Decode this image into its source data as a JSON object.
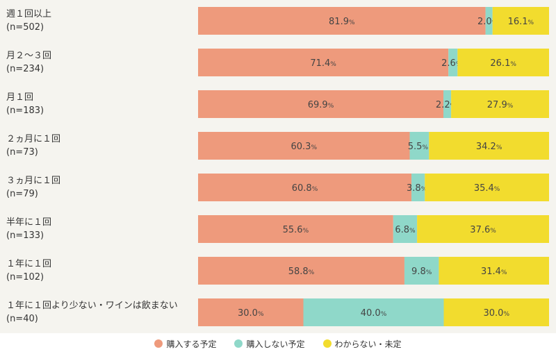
{
  "chart_data": {
    "type": "bar",
    "orientation": "horizontal",
    "stacked": true,
    "normalized_percent": true,
    "categories": [
      [
        "週１回以上",
        "(n=502)"
      ],
      [
        "月２～３回",
        "(n=234)"
      ],
      [
        "月１回",
        "(n=183)"
      ],
      [
        "２ヵ月に１回",
        "(n=73)"
      ],
      [
        "３ヵ月に１回",
        "(n=79)"
      ],
      [
        "半年に１回",
        "(n=133)"
      ],
      [
        "１年に１回",
        "(n=102)"
      ],
      [
        "１年に１回より少ない・ワインは飲まない",
        "(n=40)"
      ]
    ],
    "series": [
      {
        "name": "購入する予定",
        "color": "#ee9a7c",
        "values": [
          81.9,
          71.4,
          69.9,
          60.3,
          60.8,
          55.6,
          58.8,
          30.0
        ]
      },
      {
        "name": "購入しない予定",
        "color": "#8fd8c9",
        "values": [
          2.0,
          2.6,
          2.2,
          5.5,
          3.8,
          6.8,
          9.8,
          40.0
        ]
      },
      {
        "name": "わからない・未定",
        "color": "#f2dc2e",
        "values": [
          16.1,
          26.1,
          27.9,
          34.2,
          35.4,
          37.6,
          31.4,
          30.0
        ]
      }
    ],
    "value_suffix": "%",
    "legend_position": "bottom-center",
    "grid": false
  }
}
